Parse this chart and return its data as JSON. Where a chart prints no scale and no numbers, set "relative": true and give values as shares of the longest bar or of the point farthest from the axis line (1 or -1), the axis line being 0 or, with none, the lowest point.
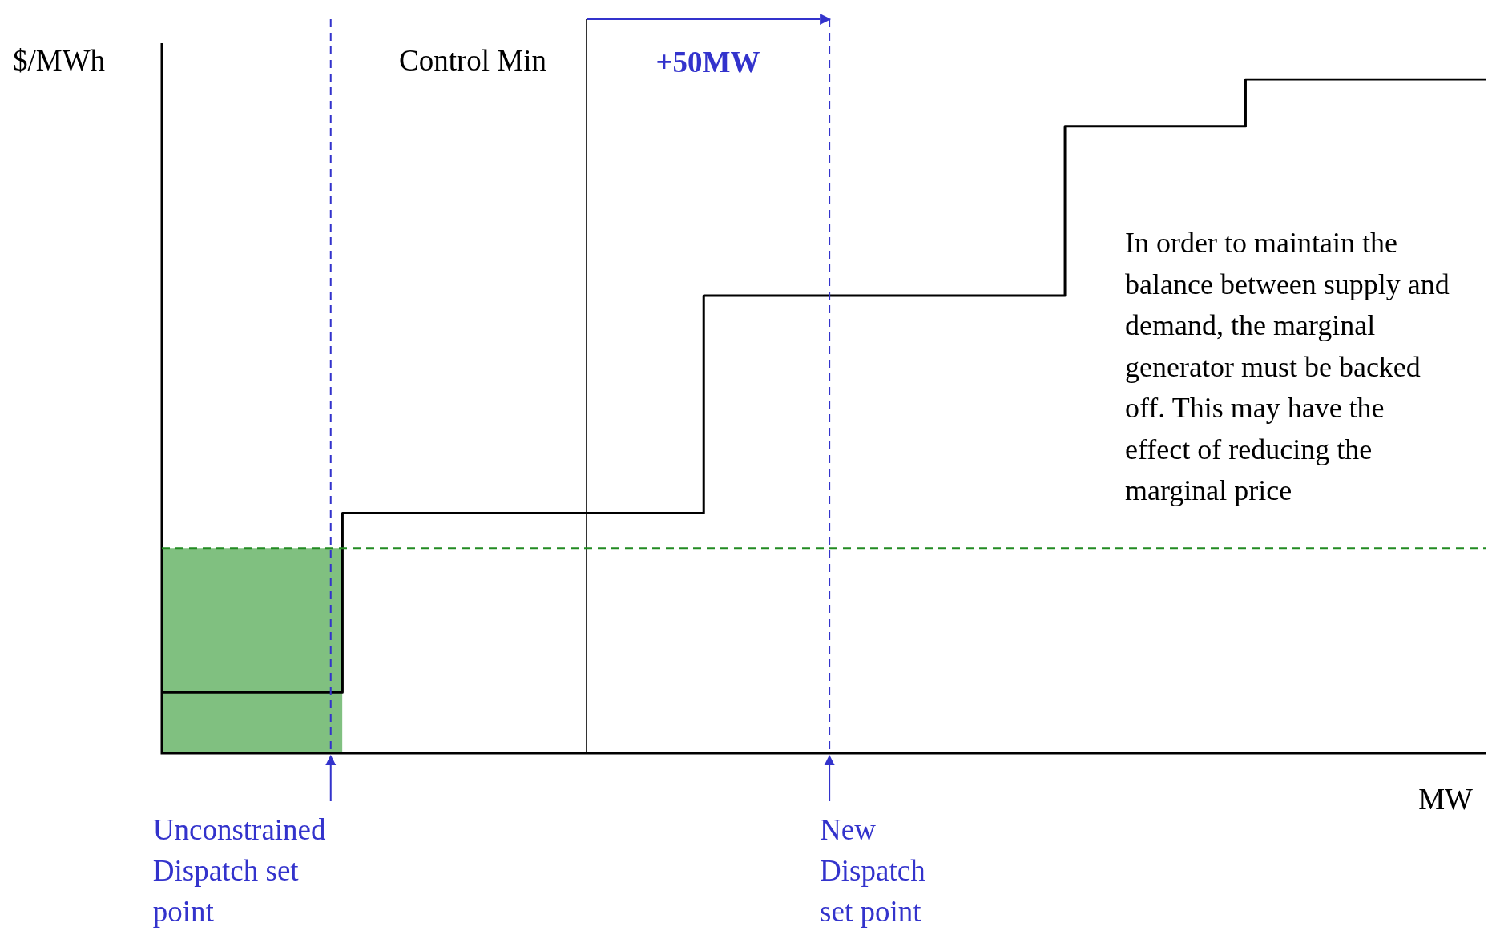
{
  "chart_data": {
    "type": "step",
    "relative": true,
    "ylabel": "$/MWh",
    "xlabel": "MW",
    "marker": "none",
    "categories": [
      null,
      null,
      null,
      null,
      null,
      null,
      null,
      null,
      null,
      null,
      null,
      null,
      null,
      null,
      null,
      null,
      null,
      null,
      null,
      null,
      null,
      null,
      null
    ],
    "series": [
      {
        "type": "area",
        "color": "#80c080",
        "values": [
          0.304,
          0.304,
          0.304,
          0.304,
          null,
          null,
          null,
          null,
          null,
          null,
          null,
          null,
          null,
          null,
          null,
          null,
          null,
          null,
          null,
          null,
          null,
          null,
          null
        ]
      },
      {
        "color": "#000000",
        "values": [
          0.09,
          0.09,
          0.09,
          0.356,
          0.356,
          0.356,
          0.356,
          0.356,
          0.356,
          0.679,
          0.679,
          0.679,
          0.679,
          0.679,
          0.679,
          0.93,
          0.93,
          0.93,
          1,
          1,
          1,
          1,
          1
        ]
      }
    ],
    "ref_lines": [
      {
        "axis": "y",
        "value": 0.304,
        "color": "#228b22",
        "line_style": "dashed"
      }
    ],
    "annotations": [
      "+50MW",
      "In order to maintain the balance between supply and demand, the marginal generator must be backed off. This may have the effect of reducing the marginal price",
      "Unconstrained Dispatch set point",
      "Control Min",
      "New Dispatch set point"
    ]
  }
}
